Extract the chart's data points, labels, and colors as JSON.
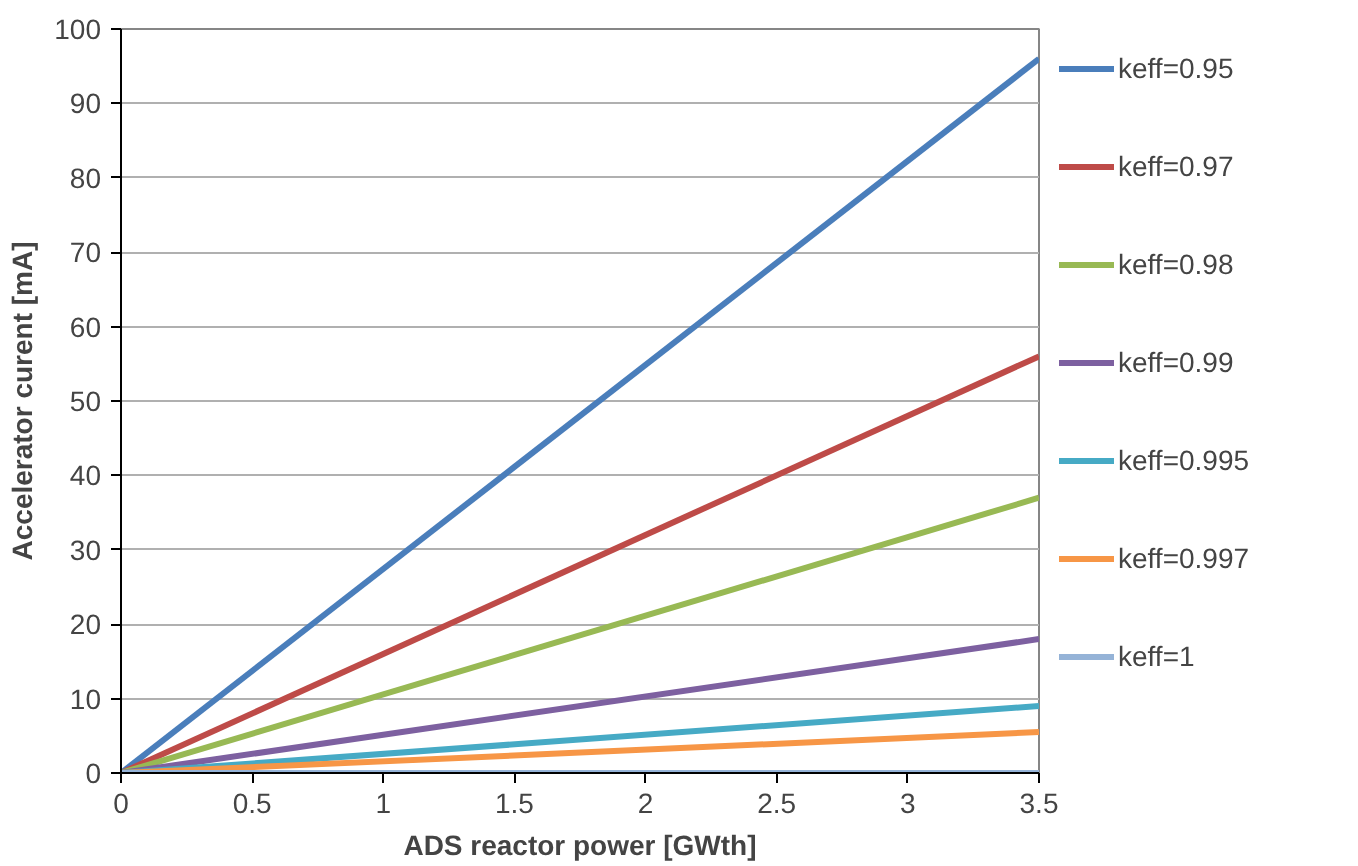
{
  "chart_data": {
    "type": "line",
    "xlabel": "ADS reactor power [GWth]",
    "ylabel": "Accelerator curent [mA]",
    "x": [
      0,
      3.5
    ],
    "xlim": [
      0,
      3.5
    ],
    "xticks": [
      0,
      0.5,
      1,
      1.5,
      2,
      2.5,
      3,
      3.5
    ],
    "ylim": [
      0,
      100
    ],
    "yticks": [
      0,
      10,
      20,
      30,
      40,
      50,
      60,
      70,
      80,
      90,
      100
    ],
    "grid": "y",
    "legend": "right",
    "marker": "none",
    "line_style": "solid",
    "series": [
      {
        "name": "keff=0.95",
        "color": "#4a7ebb",
        "values": [
          0,
          96
        ]
      },
      {
        "name": "keff=0.97",
        "color": "#be4b48",
        "values": [
          0,
          56
        ]
      },
      {
        "name": "keff=0.98",
        "color": "#98b954",
        "values": [
          0,
          37
        ]
      },
      {
        "name": "keff=0.99",
        "color": "#7d60a0",
        "values": [
          0,
          18
        ]
      },
      {
        "name": "keff=0.995",
        "color": "#46aac5",
        "values": [
          0,
          9
        ]
      },
      {
        "name": "keff=0.997",
        "color": "#f79646",
        "values": [
          0,
          5.5
        ]
      },
      {
        "name": "keff=1",
        "color": "#95b3d7",
        "values": [
          0,
          0
        ]
      }
    ]
  }
}
